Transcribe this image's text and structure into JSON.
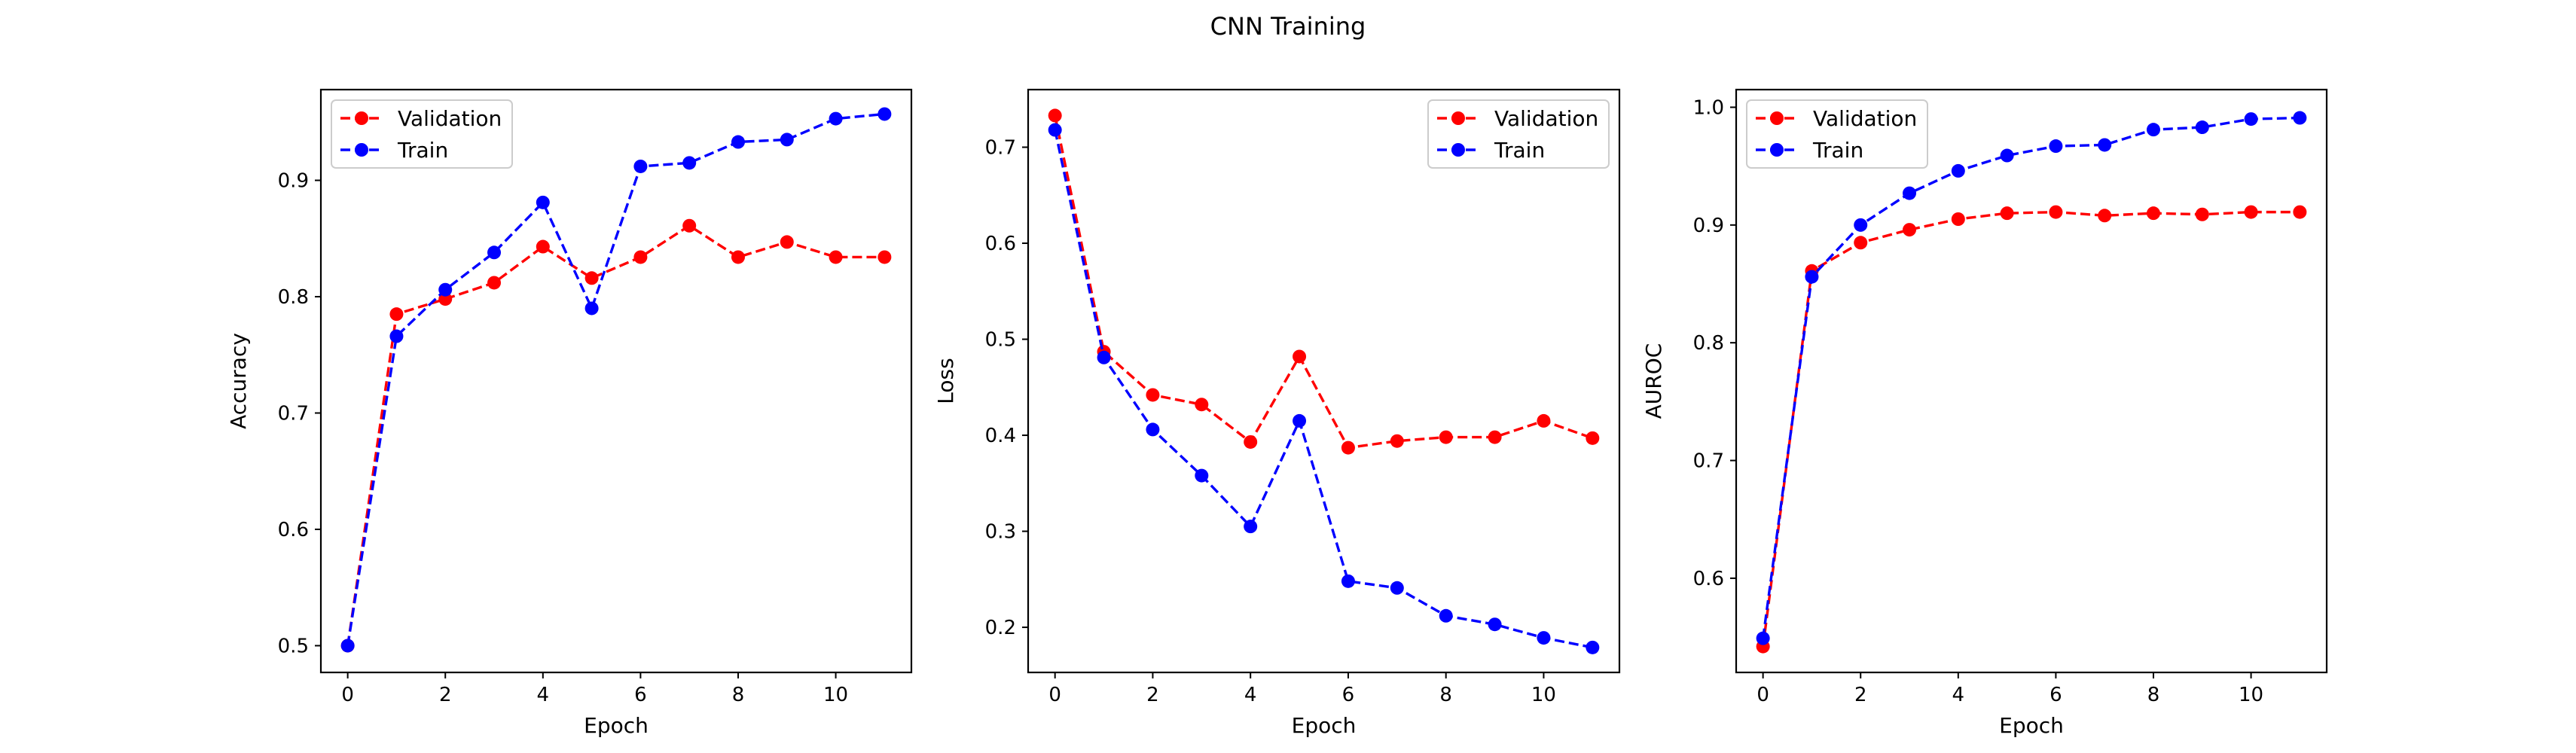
{
  "title": "CNN Training",
  "colors": {
    "validation": "#ff0000",
    "train": "#0000ff"
  },
  "chart_data": [
    {
      "type": "line",
      "xlabel": "Epoch",
      "ylabel": "Accuracy",
      "xlim": [
        -0.55,
        11.55
      ],
      "ylim": [
        0.477,
        0.978
      ],
      "xticks": [
        0,
        2,
        4,
        6,
        8,
        10
      ],
      "yticks": [
        0.5,
        0.6,
        0.7,
        0.8,
        0.9
      ],
      "ytick_labels": [
        "0.5",
        "0.6",
        "0.7",
        "0.8",
        "0.9"
      ],
      "legend_position": "upper left",
      "x": [
        0,
        1,
        2,
        3,
        4,
        5,
        6,
        7,
        8,
        9,
        10,
        11
      ],
      "series": [
        {
          "name": "Validation",
          "color": "#ff0000",
          "linestyle": "dashed",
          "marker": "circle",
          "values": [
            0.5,
            0.785,
            0.798,
            0.812,
            0.843,
            0.816,
            0.834,
            0.861,
            0.834,
            0.847,
            0.834,
            0.834
          ]
        },
        {
          "name": "Train",
          "color": "#0000ff",
          "linestyle": "dashed",
          "marker": "circle",
          "values": [
            0.5,
            0.766,
            0.806,
            0.838,
            0.881,
            0.79,
            0.912,
            0.915,
            0.933,
            0.935,
            0.953,
            0.957
          ]
        }
      ]
    },
    {
      "type": "line",
      "xlabel": "Epoch",
      "ylabel": "Loss",
      "xlim": [
        -0.55,
        11.55
      ],
      "ylim": [
        0.153,
        0.76
      ],
      "xticks": [
        0,
        2,
        4,
        6,
        8,
        10
      ],
      "yticks": [
        0.2,
        0.3,
        0.4,
        0.5,
        0.6,
        0.7
      ],
      "ytick_labels": [
        "0.2",
        "0.3",
        "0.4",
        "0.5",
        "0.6",
        "0.7"
      ],
      "legend_position": "upper right",
      "x": [
        0,
        1,
        2,
        3,
        4,
        5,
        6,
        7,
        8,
        9,
        10,
        11
      ],
      "series": [
        {
          "name": "Validation",
          "color": "#ff0000",
          "linestyle": "dashed",
          "marker": "circle",
          "values": [
            0.733,
            0.487,
            0.442,
            0.432,
            0.393,
            0.482,
            0.387,
            0.394,
            0.398,
            0.398,
            0.415,
            0.397
          ]
        },
        {
          "name": "Train",
          "color": "#0000ff",
          "linestyle": "dashed",
          "marker": "circle",
          "values": [
            0.718,
            0.481,
            0.406,
            0.358,
            0.305,
            0.415,
            0.248,
            0.241,
            0.212,
            0.203,
            0.189,
            0.179
          ]
        }
      ]
    },
    {
      "type": "line",
      "xlabel": "Epoch",
      "ylabel": "AUROC",
      "xlim": [
        -0.55,
        11.55
      ],
      "ylim": [
        0.52,
        1.015
      ],
      "xticks": [
        0,
        2,
        4,
        6,
        8,
        10
      ],
      "yticks": [
        0.6,
        0.7,
        0.8,
        0.9,
        1.0
      ],
      "ytick_labels": [
        "0.6",
        "0.7",
        "0.8",
        "0.9",
        "1.0"
      ],
      "legend_position": "upper left",
      "x": [
        0,
        1,
        2,
        3,
        4,
        5,
        6,
        7,
        8,
        9,
        10,
        11
      ],
      "series": [
        {
          "name": "Validation",
          "color": "#ff0000",
          "linestyle": "dashed",
          "marker": "circle",
          "values": [
            0.542,
            0.861,
            0.885,
            0.896,
            0.905,
            0.91,
            0.911,
            0.908,
            0.91,
            0.909,
            0.911,
            0.911
          ]
        },
        {
          "name": "Train",
          "color": "#0000ff",
          "linestyle": "dashed",
          "marker": "circle",
          "values": [
            0.549,
            0.856,
            0.9,
            0.927,
            0.946,
            0.959,
            0.967,
            0.968,
            0.981,
            0.983,
            0.99,
            0.991
          ]
        }
      ]
    }
  ]
}
